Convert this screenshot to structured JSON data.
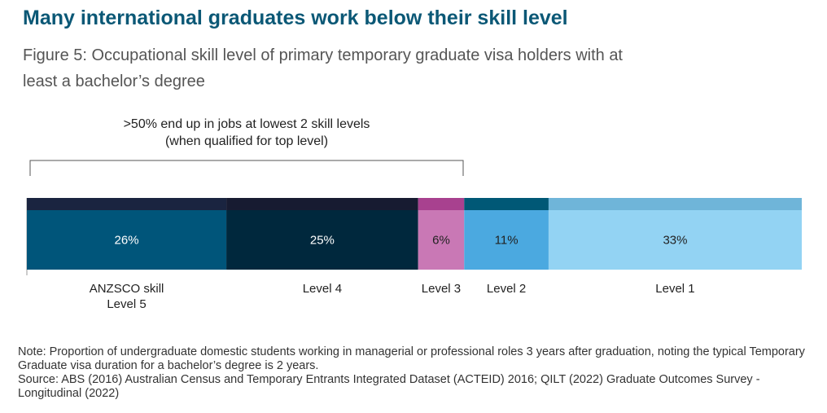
{
  "chart_data": {
    "type": "stacked-bar",
    "title": "Many international graduates work below their skill level",
    "subtitle": "Figure 5: Occupational skill level of primary temporary graduate visa holders with at least a bachelor’s degree",
    "annotation": ">50% end up in jobs at lowest 2 skill levels (when qualified for top level)",
    "categories": [
      "ANZSCO skill Level 5",
      "Level 4",
      "Level 3",
      "Level 2",
      "Level 1"
    ],
    "values": [
      26,
      25,
      6,
      11,
      33
    ],
    "value_labels": [
      "26%",
      "25%",
      "6%",
      "11%",
      "33%"
    ],
    "colors": [
      "#00557a",
      "#00283d",
      "#c978b5",
      "#4ba9e0",
      "#93d3f3"
    ],
    "top_colors": [
      "#1a2440",
      "#171b31",
      "#a8418f",
      "#005876",
      "#6fb5d9"
    ],
    "note": "Note: Proportion of undergraduate domestic students working in managerial or professional roles 3 years after graduation, noting the typical Temporary Graduate visa duration for a bachelor’s degree is 2 years.",
    "source": "Source: ABS (2016) Australian Census and Temporary Entrants Integrated Dataset (ACTEID) 2016; QILT (2022) Graduate Outcomes Survey - Longitudinal (2022)"
  }
}
